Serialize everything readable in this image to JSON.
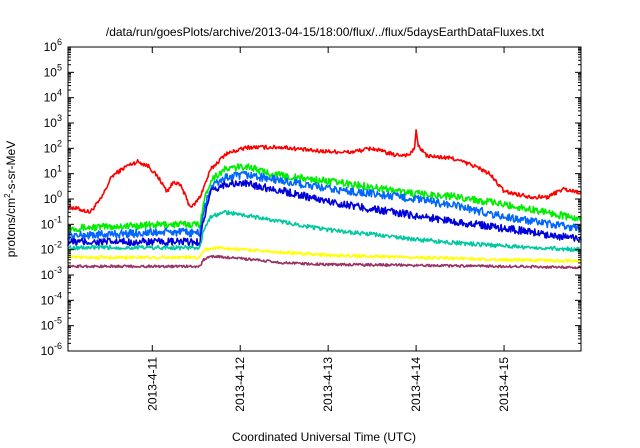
{
  "chart_data": {
    "type": "line",
    "title": "/data/run/goesPlots/archive/2013-04-15/18:00/flux/../flux/5daysEarthDataFluxes.txt",
    "xlabel": "Coordinated Universal Time (UTC)",
    "ylabel": {
      "base": "protons/cm",
      "sup": "2",
      "rest": "-s-sr-MeV"
    },
    "yscale": "log",
    "ylim": [
      1e-06,
      1000000.0
    ],
    "xlim": [
      "2013-04-10 01:00",
      "2013-04-15 21:00"
    ],
    "yticks": [
      {
        "value": 1e-06,
        "base": "10",
        "exp": "-6"
      },
      {
        "value": 1e-05,
        "base": "10",
        "exp": "-5"
      },
      {
        "value": 0.0001,
        "base": "10",
        "exp": "-4"
      },
      {
        "value": 0.001,
        "base": "10",
        "exp": "-3"
      },
      {
        "value": 0.01,
        "base": "10",
        "exp": "-2"
      },
      {
        "value": 0.1,
        "base": "10",
        "exp": "-1"
      },
      {
        "value": 1,
        "base": "10",
        "exp": "0"
      },
      {
        "value": 10.0,
        "base": "10",
        "exp": "1"
      },
      {
        "value": 100.0,
        "base": "10",
        "exp": "2"
      },
      {
        "value": 1000.0,
        "base": "10",
        "exp": "3"
      },
      {
        "value": 10000.0,
        "base": "10",
        "exp": "4"
      },
      {
        "value": 100000.0,
        "base": "10",
        "exp": "5"
      },
      {
        "value": 1000000.0,
        "base": "10",
        "exp": "6"
      }
    ],
    "xticks": [
      {
        "value": "2013-04-11 00:00",
        "label": "2013-4-11"
      },
      {
        "value": "2013-04-12 00:00",
        "label": "2013-4-12"
      },
      {
        "value": "2013-04-13 00:00",
        "label": "2013-4-13"
      },
      {
        "value": "2013-04-14 00:00",
        "label": "2013-4-14"
      },
      {
        "value": "2013-04-15 00:00",
        "label": "2013-4-15"
      }
    ],
    "grid": false,
    "legend": "none",
    "series": [
      {
        "color": "#ff0000",
        "noise": 0.08,
        "points": [
          [
            "2013-04-10 01:00",
            0.5
          ],
          [
            "2013-04-10 04:00",
            0.4
          ],
          [
            "2013-04-10 07:00",
            0.3
          ],
          [
            "2013-04-10 10:00",
            1.0
          ],
          [
            "2013-04-10 13:00",
            8
          ],
          [
            "2013-04-10 17:00",
            20
          ],
          [
            "2013-04-10 20:00",
            30
          ],
          [
            "2013-04-10 23:00",
            20
          ],
          [
            "2013-04-11 02:00",
            6
          ],
          [
            "2013-04-11 04:00",
            2
          ],
          [
            "2013-04-11 06:00",
            5
          ],
          [
            "2013-04-11 08:00",
            3
          ],
          [
            "2013-04-11 10:00",
            0.6
          ],
          [
            "2013-04-11 11:00",
            0.5
          ],
          [
            "2013-04-11 13:00",
            1.2
          ],
          [
            "2013-04-11 16:00",
            15
          ],
          [
            "2013-04-11 20:00",
            60
          ],
          [
            "2013-04-12 02:00",
            110
          ],
          [
            "2013-04-12 12:00",
            110
          ],
          [
            "2013-04-12 20:00",
            80
          ],
          [
            "2013-04-13 06:00",
            70
          ],
          [
            "2013-04-13 12:00",
            100
          ],
          [
            "2013-04-13 18:00",
            55
          ],
          [
            "2013-04-13 22:00",
            55
          ],
          [
            "2013-04-13 23:30",
            90
          ],
          [
            "2013-04-14 00:00",
            450
          ],
          [
            "2013-04-14 00:40",
            120
          ],
          [
            "2013-04-14 03:00",
            50
          ],
          [
            "2013-04-14 10:00",
            40
          ],
          [
            "2013-04-14 16:00",
            20
          ],
          [
            "2013-04-14 20:00",
            10
          ],
          [
            "2013-04-15 00:00",
            2
          ],
          [
            "2013-04-15 04:00",
            1.5
          ],
          [
            "2013-04-15 08:00",
            1.2
          ],
          [
            "2013-04-15 12:00",
            1.2
          ],
          [
            "2013-04-15 16:00",
            2.5
          ],
          [
            "2013-04-15 21:00",
            1.8
          ]
        ]
      },
      {
        "color": "#00ee00",
        "noise": 0.14,
        "points": [
          [
            "2013-04-10 01:00",
            0.07
          ],
          [
            "2013-04-11 05:00",
            0.1
          ],
          [
            "2013-04-11 13:00",
            0.1
          ],
          [
            "2013-04-11 14:00",
            0.7
          ],
          [
            "2013-04-11 16:00",
            6
          ],
          [
            "2013-04-11 20:00",
            15
          ],
          [
            "2013-04-12 02:00",
            20
          ],
          [
            "2013-04-12 06:00",
            12
          ],
          [
            "2013-04-12 12:00",
            8
          ],
          [
            "2013-04-13 00:00",
            5
          ],
          [
            "2013-04-13 12:00",
            3
          ],
          [
            "2013-04-14 00:00",
            1.6
          ],
          [
            "2013-04-14 12:00",
            1.2
          ],
          [
            "2013-04-15 00:00",
            0.6
          ],
          [
            "2013-04-15 12:00",
            0.3
          ],
          [
            "2013-04-15 21:00",
            0.15
          ]
        ]
      },
      {
        "color": "#0066ff",
        "noise": 0.16,
        "points": [
          [
            "2013-04-10 01:00",
            0.035
          ],
          [
            "2013-04-11 05:00",
            0.05
          ],
          [
            "2013-04-11 13:00",
            0.045
          ],
          [
            "2013-04-11 14:00",
            0.3
          ],
          [
            "2013-04-11 16:00",
            3
          ],
          [
            "2013-04-11 20:00",
            7
          ],
          [
            "2013-04-12 02:00",
            9
          ],
          [
            "2013-04-12 12:00",
            5
          ],
          [
            "2013-04-13 00:00",
            2.5
          ],
          [
            "2013-04-13 12:00",
            1.6
          ],
          [
            "2013-04-14 00:00",
            1.0
          ],
          [
            "2013-04-14 12:00",
            0.5
          ],
          [
            "2013-04-15 00:00",
            0.2
          ],
          [
            "2013-04-15 12:00",
            0.1
          ],
          [
            "2013-04-15 21:00",
            0.07
          ]
        ]
      },
      {
        "color": "#0000dd",
        "noise": 0.15,
        "points": [
          [
            "2013-04-10 01:00",
            0.02
          ],
          [
            "2013-04-11 05:00",
            0.02
          ],
          [
            "2013-04-11 13:00",
            0.02
          ],
          [
            "2013-04-11 14:00",
            0.15
          ],
          [
            "2013-04-11 16:00",
            1.8
          ],
          [
            "2013-04-11 20:00",
            4
          ],
          [
            "2013-04-12 02:00",
            4
          ],
          [
            "2013-04-12 12:00",
            2
          ],
          [
            "2013-04-13 00:00",
            0.8
          ],
          [
            "2013-04-13 12:00",
            0.4
          ],
          [
            "2013-04-14 00:00",
            0.22
          ],
          [
            "2013-04-14 12:00",
            0.12
          ],
          [
            "2013-04-15 00:00",
            0.07
          ],
          [
            "2013-04-15 12:00",
            0.04
          ],
          [
            "2013-04-15 21:00",
            0.025
          ]
        ]
      },
      {
        "color": "#00c8a0",
        "noise": 0.08,
        "points": [
          [
            "2013-04-10 01:00",
            0.012
          ],
          [
            "2013-04-11 05:00",
            0.012
          ],
          [
            "2013-04-11 13:00",
            0.012
          ],
          [
            "2013-04-11 14:00",
            0.06
          ],
          [
            "2013-04-11 16:00",
            0.2
          ],
          [
            "2013-04-11 20:00",
            0.3
          ],
          [
            "2013-04-12 02:00",
            0.22
          ],
          [
            "2013-04-12 12:00",
            0.12
          ],
          [
            "2013-04-13 00:00",
            0.06
          ],
          [
            "2013-04-13 12:00",
            0.04
          ],
          [
            "2013-04-14 00:00",
            0.025
          ],
          [
            "2013-04-14 12:00",
            0.018
          ],
          [
            "2013-04-15 00:00",
            0.014
          ],
          [
            "2013-04-15 21:00",
            0.01
          ]
        ]
      },
      {
        "color": "#ffff00",
        "noise": 0.06,
        "points": [
          [
            "2013-04-10 01:00",
            0.005
          ],
          [
            "2013-04-11 13:00",
            0.005
          ],
          [
            "2013-04-11 14:00",
            0.01
          ],
          [
            "2013-04-11 18:00",
            0.012
          ],
          [
            "2013-04-12 06:00",
            0.009
          ],
          [
            "2013-04-13 00:00",
            0.006
          ],
          [
            "2013-04-14 00:00",
            0.005
          ],
          [
            "2013-04-15 00:00",
            0.004
          ],
          [
            "2013-04-15 21:00",
            0.0035
          ]
        ]
      },
      {
        "color": "#993366",
        "noise": 0.05,
        "points": [
          [
            "2013-04-10 01:00",
            0.0022
          ],
          [
            "2013-04-11 13:00",
            0.0022
          ],
          [
            "2013-04-11 14:00",
            0.004
          ],
          [
            "2013-04-11 16:00",
            0.0055
          ],
          [
            "2013-04-12 00:00",
            0.0045
          ],
          [
            "2013-04-12 12:00",
            0.003
          ],
          [
            "2013-04-13 00:00",
            0.0026
          ],
          [
            "2013-04-14 00:00",
            0.0024
          ],
          [
            "2013-04-15 00:00",
            0.0022
          ],
          [
            "2013-04-15 21:00",
            0.002
          ]
        ]
      }
    ]
  }
}
